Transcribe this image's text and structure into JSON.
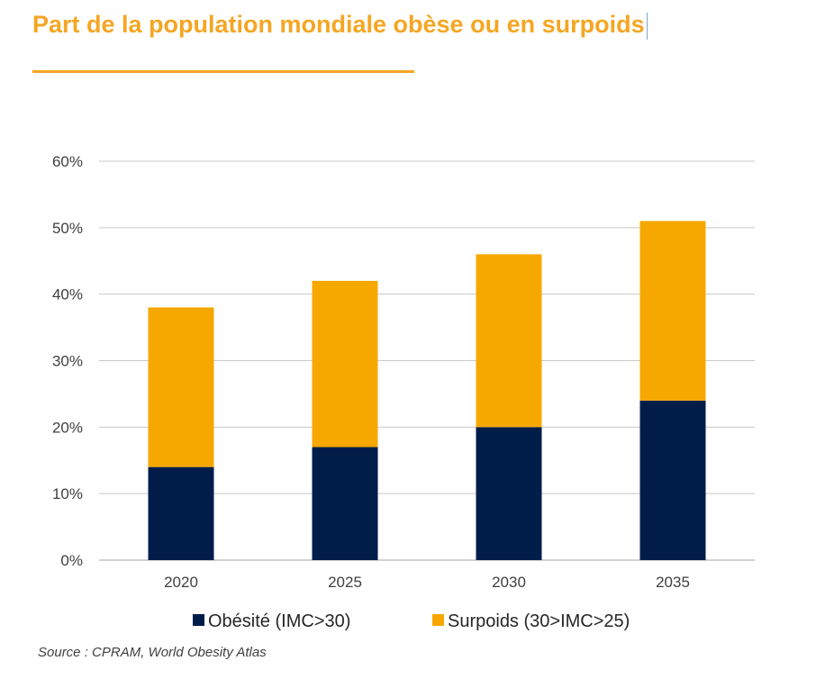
{
  "title": "Part de la population mondiale obèse ou en surpoids",
  "source": "Source : CPRAM, World Obesity Atlas",
  "chart_data": {
    "type": "bar",
    "stacked": true,
    "categories": [
      "2020",
      "2025",
      "2030",
      "2035"
    ],
    "series": [
      {
        "name": "Obésité (IMC>30)",
        "values": [
          14,
          17,
          20,
          24
        ],
        "color": "#001D4A"
      },
      {
        "name": "Surpoids (30>IMC>25)",
        "values": [
          24,
          25,
          26,
          27
        ],
        "color": "#F7A800"
      }
    ],
    "yticks": [
      "0%",
      "10%",
      "20%",
      "30%",
      "40%",
      "50%",
      "60%"
    ],
    "ylim": [
      0,
      60
    ],
    "grid": true,
    "legend": "bottom"
  }
}
